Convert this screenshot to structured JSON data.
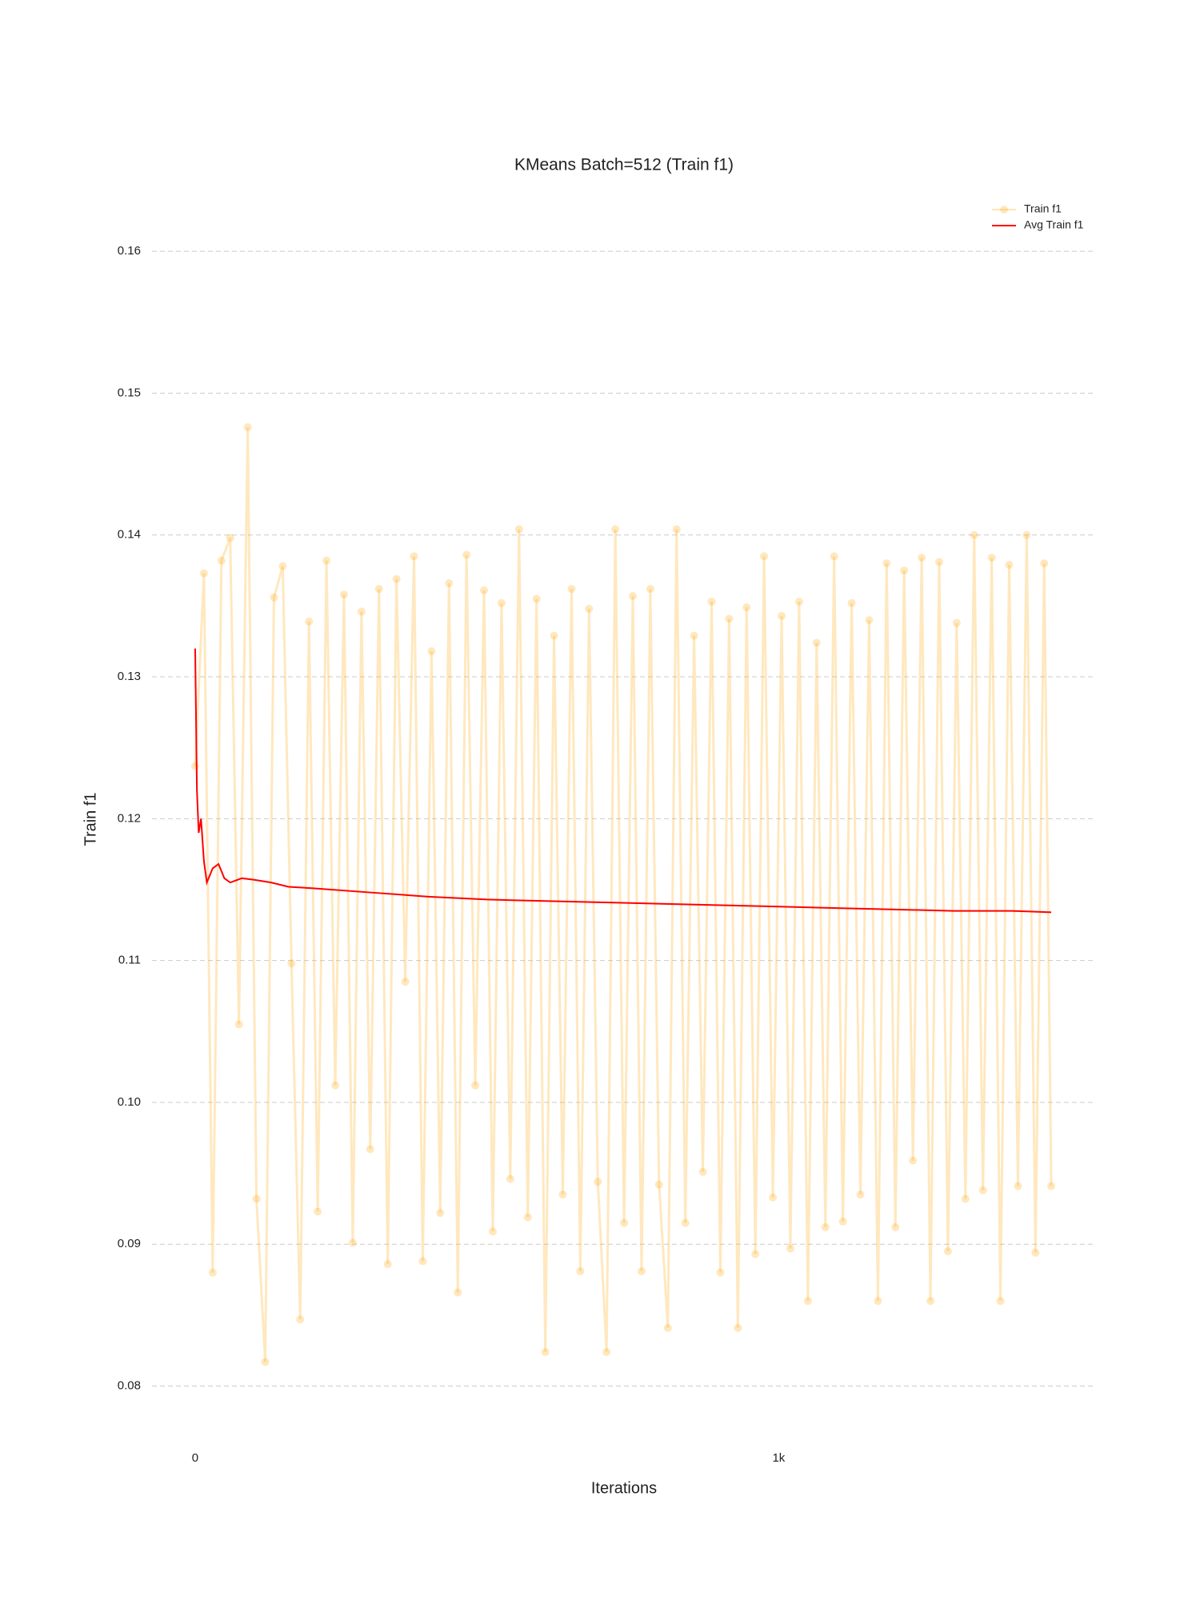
{
  "chart_data": {
    "type": "line",
    "title": "KMeans Batch=512 (Train f1)",
    "xlabel": "Iterations",
    "ylabel": "Train f1",
    "xlim": [
      -74,
      1541
    ],
    "ylim": [
      0.0771,
      0.1617
    ],
    "xticks": [
      0,
      {
        "value": 1000,
        "label": "1k"
      }
    ],
    "yticks": [
      0.08,
      0.09,
      {
        "value": 0.1,
        "label": "0.10"
      },
      0.11,
      0.12,
      0.13,
      0.14,
      0.15,
      0.16
    ],
    "grid": true,
    "legend": "upper right",
    "series": [
      {
        "name": "Train f1",
        "color": "#ffa500",
        "markers": true,
        "x": [
          0,
          15,
          30,
          45,
          60,
          75,
          90,
          105,
          120,
          135,
          150,
          165,
          180,
          195,
          210,
          225,
          240,
          255,
          270,
          285,
          300,
          315,
          330,
          345,
          360,
          375,
          390,
          405,
          420,
          435,
          450,
          465,
          480,
          495,
          510,
          525,
          540,
          555,
          570,
          585,
          600,
          615,
          630,
          645,
          660,
          675,
          690,
          705,
          720,
          735,
          750,
          765,
          780,
          795,
          810,
          825,
          840,
          855,
          870,
          885,
          900,
          915,
          930,
          945,
          960,
          975,
          990,
          1005,
          1020,
          1035,
          1050,
          1065,
          1080,
          1095,
          1110,
          1125,
          1140,
          1155,
          1170,
          1185,
          1200,
          1215,
          1230,
          1245,
          1260,
          1275,
          1290,
          1305,
          1320,
          1335,
          1350,
          1365,
          1380,
          1395,
          1410,
          1425,
          1440,
          1455,
          1467
        ],
        "values": [
          0.1237,
          0.1373,
          0.088,
          0.1382,
          0.1398,
          0.1055,
          0.1476,
          0.0932,
          0.0817,
          0.1356,
          0.1378,
          0.1098,
          0.0847,
          0.1339,
          0.0923,
          0.1382,
          0.1012,
          0.1358,
          0.0901,
          0.1346,
          0.0967,
          0.1362,
          0.0886,
          0.1369,
          0.1085,
          0.1385,
          0.0888,
          0.1318,
          0.0922,
          0.1366,
          0.0866,
          0.1386,
          0.1012,
          0.1361,
          0.0909,
          0.1352,
          0.0946,
          0.1404,
          0.0919,
          0.1355,
          0.0824,
          0.1329,
          0.0935,
          0.1362,
          0.0881,
          0.1348,
          0.0944,
          0.0824,
          0.1404,
          0.0915,
          0.1357,
          0.0881,
          0.1362,
          0.0942,
          0.0841,
          0.1404,
          0.0915,
          0.1329,
          0.0951,
          0.1353,
          0.088,
          0.1341,
          0.0841,
          0.1349,
          0.0893,
          0.1385,
          0.0933,
          0.1343,
          0.0897,
          0.1353,
          0.086,
          0.1324,
          0.0912,
          0.1385,
          0.0916,
          0.1352,
          0.0935,
          0.134,
          0.086,
          0.138,
          0.0912,
          0.1375,
          0.0959,
          0.1384,
          0.086,
          0.1381,
          0.0895,
          0.1338,
          0.0932,
          0.14,
          0.0938,
          0.1384,
          0.086,
          0.1379,
          0.0941,
          0.14,
          0.0894,
          0.138,
          0.0941
        ]
      },
      {
        "name": "Avg Train f1",
        "color": "#ff0000",
        "markers": false,
        "x": [
          0,
          3,
          6,
          10,
          15,
          20,
          30,
          40,
          50,
          60,
          80,
          100,
          130,
          160,
          200,
          300,
          400,
          500,
          600,
          700,
          800,
          900,
          1000,
          1100,
          1200,
          1300,
          1400,
          1467
        ],
        "values": [
          0.132,
          0.122,
          0.119,
          0.12,
          0.117,
          0.1155,
          0.1165,
          0.1168,
          0.1158,
          0.1155,
          0.1158,
          0.1157,
          0.1155,
          0.1152,
          0.1151,
          0.1148,
          0.1145,
          0.1143,
          0.1142,
          0.1141,
          0.114,
          0.1139,
          0.1138,
          0.1137,
          0.1136,
          0.1135,
          0.1135,
          0.1134
        ]
      }
    ]
  }
}
